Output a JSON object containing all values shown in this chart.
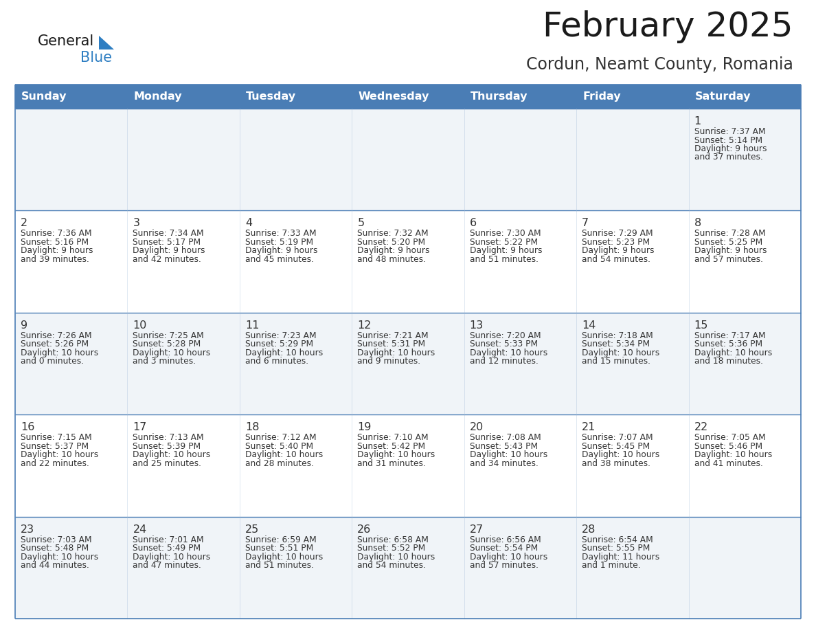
{
  "title": "February 2025",
  "subtitle": "Cordun, Neamt County, Romania",
  "days_of_week": [
    "Sunday",
    "Monday",
    "Tuesday",
    "Wednesday",
    "Thursday",
    "Friday",
    "Saturday"
  ],
  "header_bg": "#4A7DB5",
  "header_text": "#FFFFFF",
  "cell_bg_odd": "#F0F4F8",
  "cell_bg_even": "#FFFFFF",
  "border_color": "#4A7DB5",
  "text_color": "#333333",
  "title_color": "#1a1a1a",
  "subtitle_color": "#333333",
  "logo_general_color": "#1a1a1a",
  "logo_blue_color": "#2E7EC2",
  "calendar_data": [
    [
      null,
      null,
      null,
      null,
      null,
      null,
      {
        "day": "1",
        "sunrise": "7:37 AM",
        "sunset": "5:14 PM",
        "daylight_h": "9 hours",
        "daylight_m": "and 37 minutes."
      }
    ],
    [
      {
        "day": "2",
        "sunrise": "7:36 AM",
        "sunset": "5:16 PM",
        "daylight_h": "9 hours",
        "daylight_m": "and 39 minutes."
      },
      {
        "day": "3",
        "sunrise": "7:34 AM",
        "sunset": "5:17 PM",
        "daylight_h": "9 hours",
        "daylight_m": "and 42 minutes."
      },
      {
        "day": "4",
        "sunrise": "7:33 AM",
        "sunset": "5:19 PM",
        "daylight_h": "9 hours",
        "daylight_m": "and 45 minutes."
      },
      {
        "day": "5",
        "sunrise": "7:32 AM",
        "sunset": "5:20 PM",
        "daylight_h": "9 hours",
        "daylight_m": "and 48 minutes."
      },
      {
        "day": "6",
        "sunrise": "7:30 AM",
        "sunset": "5:22 PM",
        "daylight_h": "9 hours",
        "daylight_m": "and 51 minutes."
      },
      {
        "day": "7",
        "sunrise": "7:29 AM",
        "sunset": "5:23 PM",
        "daylight_h": "9 hours",
        "daylight_m": "and 54 minutes."
      },
      {
        "day": "8",
        "sunrise": "7:28 AM",
        "sunset": "5:25 PM",
        "daylight_h": "9 hours",
        "daylight_m": "and 57 minutes."
      }
    ],
    [
      {
        "day": "9",
        "sunrise": "7:26 AM",
        "sunset": "5:26 PM",
        "daylight_h": "10 hours",
        "daylight_m": "and 0 minutes."
      },
      {
        "day": "10",
        "sunrise": "7:25 AM",
        "sunset": "5:28 PM",
        "daylight_h": "10 hours",
        "daylight_m": "and 3 minutes."
      },
      {
        "day": "11",
        "sunrise": "7:23 AM",
        "sunset": "5:29 PM",
        "daylight_h": "10 hours",
        "daylight_m": "and 6 minutes."
      },
      {
        "day": "12",
        "sunrise": "7:21 AM",
        "sunset": "5:31 PM",
        "daylight_h": "10 hours",
        "daylight_m": "and 9 minutes."
      },
      {
        "day": "13",
        "sunrise": "7:20 AM",
        "sunset": "5:33 PM",
        "daylight_h": "10 hours",
        "daylight_m": "and 12 minutes."
      },
      {
        "day": "14",
        "sunrise": "7:18 AM",
        "sunset": "5:34 PM",
        "daylight_h": "10 hours",
        "daylight_m": "and 15 minutes."
      },
      {
        "day": "15",
        "sunrise": "7:17 AM",
        "sunset": "5:36 PM",
        "daylight_h": "10 hours",
        "daylight_m": "and 18 minutes."
      }
    ],
    [
      {
        "day": "16",
        "sunrise": "7:15 AM",
        "sunset": "5:37 PM",
        "daylight_h": "10 hours",
        "daylight_m": "and 22 minutes."
      },
      {
        "day": "17",
        "sunrise": "7:13 AM",
        "sunset": "5:39 PM",
        "daylight_h": "10 hours",
        "daylight_m": "and 25 minutes."
      },
      {
        "day": "18",
        "sunrise": "7:12 AM",
        "sunset": "5:40 PM",
        "daylight_h": "10 hours",
        "daylight_m": "and 28 minutes."
      },
      {
        "day": "19",
        "sunrise": "7:10 AM",
        "sunset": "5:42 PM",
        "daylight_h": "10 hours",
        "daylight_m": "and 31 minutes."
      },
      {
        "day": "20",
        "sunrise": "7:08 AM",
        "sunset": "5:43 PM",
        "daylight_h": "10 hours",
        "daylight_m": "and 34 minutes."
      },
      {
        "day": "21",
        "sunrise": "7:07 AM",
        "sunset": "5:45 PM",
        "daylight_h": "10 hours",
        "daylight_m": "and 38 minutes."
      },
      {
        "day": "22",
        "sunrise": "7:05 AM",
        "sunset": "5:46 PM",
        "daylight_h": "10 hours",
        "daylight_m": "and 41 minutes."
      }
    ],
    [
      {
        "day": "23",
        "sunrise": "7:03 AM",
        "sunset": "5:48 PM",
        "daylight_h": "10 hours",
        "daylight_m": "and 44 minutes."
      },
      {
        "day": "24",
        "sunrise": "7:01 AM",
        "sunset": "5:49 PM",
        "daylight_h": "10 hours",
        "daylight_m": "and 47 minutes."
      },
      {
        "day": "25",
        "sunrise": "6:59 AM",
        "sunset": "5:51 PM",
        "daylight_h": "10 hours",
        "daylight_m": "and 51 minutes."
      },
      {
        "day": "26",
        "sunrise": "6:58 AM",
        "sunset": "5:52 PM",
        "daylight_h": "10 hours",
        "daylight_m": "and 54 minutes."
      },
      {
        "day": "27",
        "sunrise": "6:56 AM",
        "sunset": "5:54 PM",
        "daylight_h": "10 hours",
        "daylight_m": "and 57 minutes."
      },
      {
        "day": "28",
        "sunrise": "6:54 AM",
        "sunset": "5:55 PM",
        "daylight_h": "11 hours",
        "daylight_m": "and 1 minute."
      },
      null
    ]
  ]
}
